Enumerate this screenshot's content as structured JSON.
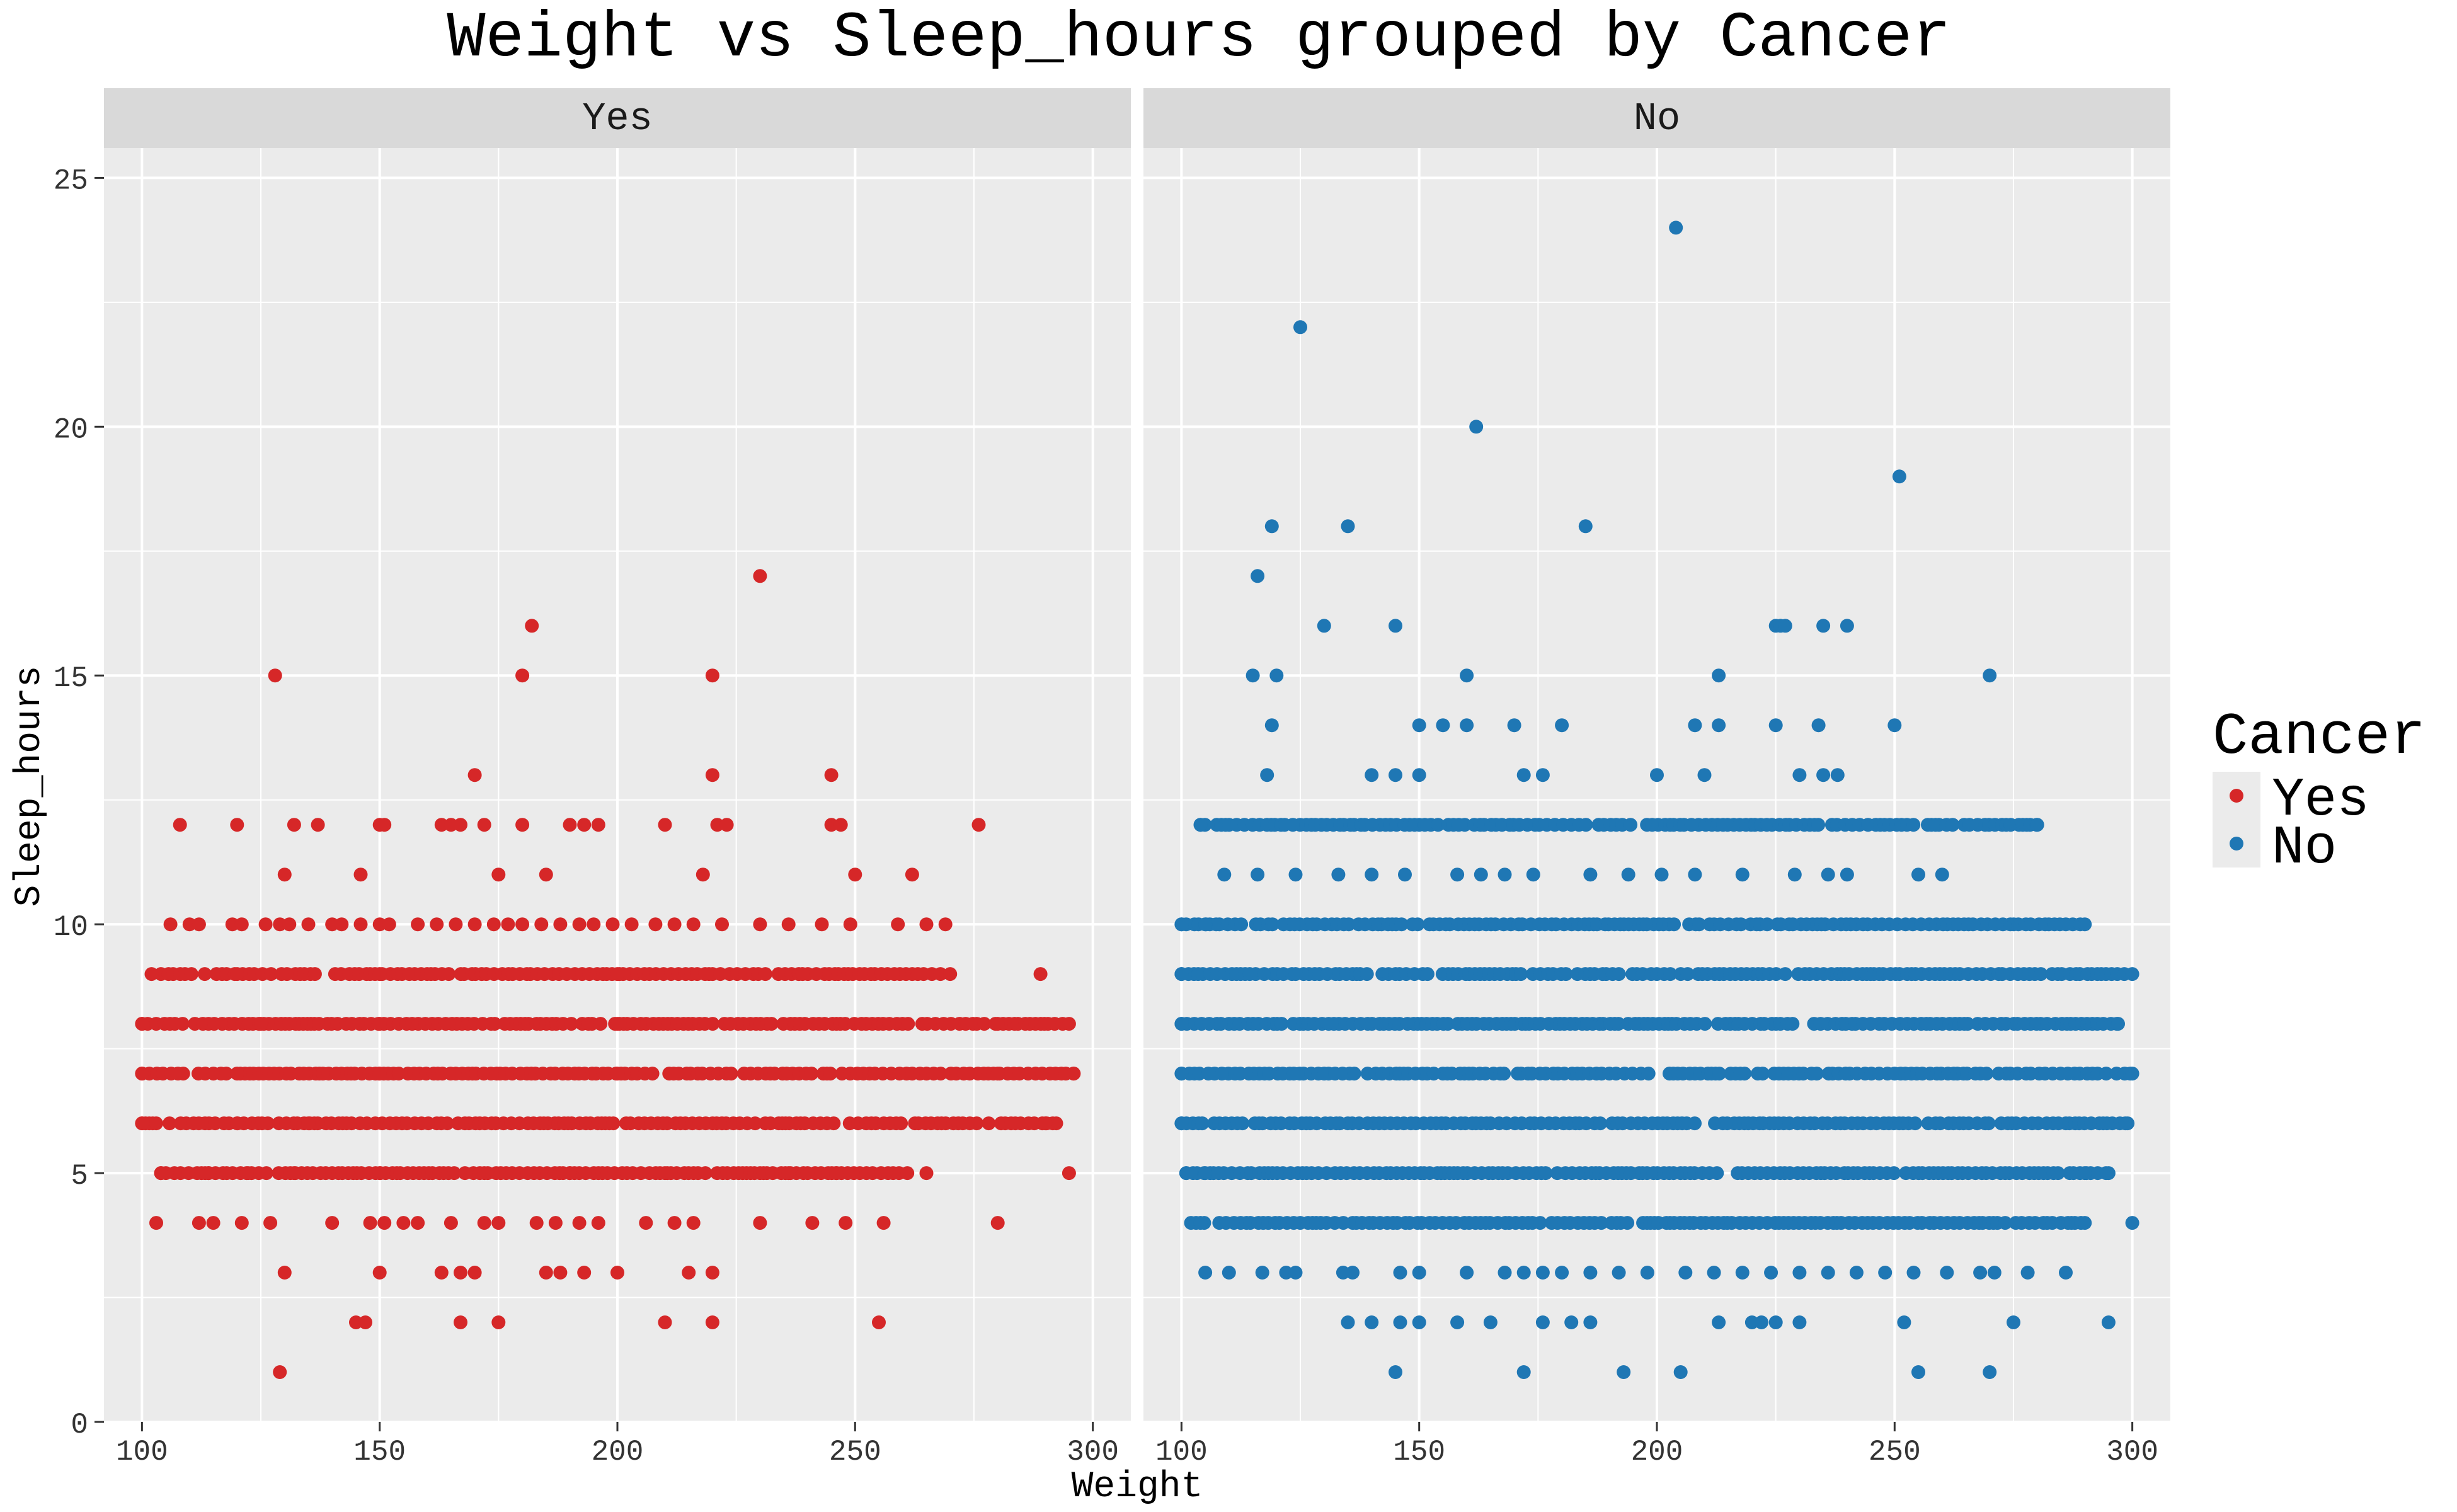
{
  "chart_data": {
    "type": "scatter",
    "title": "Weight vs Sleep_hours grouped by Cancer",
    "xlabel": "Weight",
    "ylabel": "Sleep_hours",
    "xlim": [
      92,
      308
    ],
    "ylim": [
      0,
      25.6
    ],
    "x_ticks": [
      100,
      150,
      200,
      250,
      300
    ],
    "y_ticks": [
      0,
      5,
      10,
      15,
      20,
      25
    ],
    "grid": true,
    "legend": {
      "title": "Cancer",
      "position": "right",
      "entries": [
        {
          "label": "Yes",
          "color": "#d62728"
        },
        {
          "label": "No",
          "color": "#1f77b4"
        }
      ]
    },
    "panels": [
      {
        "label": "Yes",
        "color": "#d62728",
        "points": [
          [
            129,
            1
          ],
          [
            145,
            2
          ],
          [
            147,
            2
          ],
          [
            167,
            2
          ],
          [
            175,
            2
          ],
          [
            210,
            2
          ],
          [
            220,
            2
          ],
          [
            255,
            2
          ],
          [
            130,
            3
          ],
          [
            150,
            3
          ],
          [
            163,
            3
          ],
          [
            167,
            3
          ],
          [
            170,
            3
          ],
          [
            185,
            3
          ],
          [
            188,
            3
          ],
          [
            193,
            3
          ],
          [
            200,
            3
          ],
          [
            215,
            3
          ],
          [
            220,
            3
          ],
          [
            103,
            4
          ],
          [
            112,
            4
          ],
          [
            115,
            4
          ],
          [
            121,
            4
          ],
          [
            127,
            4
          ],
          [
            140,
            4
          ],
          [
            148,
            4
          ],
          [
            151,
            4
          ],
          [
            155,
            4
          ],
          [
            158,
            4
          ],
          [
            165,
            4
          ],
          [
            172,
            4
          ],
          [
            175,
            4
          ],
          [
            183,
            4
          ],
          [
            187,
            4
          ],
          [
            192,
            4
          ],
          [
            196,
            4
          ],
          [
            206,
            4
          ],
          [
            212,
            4
          ],
          [
            216,
            4
          ],
          [
            230,
            4
          ],
          [
            241,
            4
          ],
          [
            248,
            4
          ],
          [
            256,
            4
          ],
          [
            280,
            4
          ],
          [
            104,
            5
          ],
          [
            114,
            5
          ],
          [
            122,
            5
          ],
          [
            132,
            5
          ],
          [
            150,
            5
          ],
          [
            172,
            5
          ],
          [
            190,
            5
          ],
          [
            210,
            5
          ],
          [
            236,
            5
          ],
          [
            246,
            5
          ],
          [
            265,
            5
          ],
          [
            295,
            5
          ],
          [
            100,
            6
          ],
          [
            120,
            6
          ],
          [
            135,
            6
          ],
          [
            290,
            6
          ],
          [
            100,
            7
          ],
          [
            120,
            7
          ],
          [
            150,
            7
          ],
          [
            200,
            7
          ],
          [
            280,
            7
          ],
          [
            296,
            7
          ],
          [
            100,
            8
          ],
          [
            125,
            8
          ],
          [
            150,
            8
          ],
          [
            200,
            8
          ],
          [
            280,
            8
          ],
          [
            295,
            8
          ],
          [
            102,
            9
          ],
          [
            120,
            9
          ],
          [
            150,
            9
          ],
          [
            200,
            9
          ],
          [
            270,
            9
          ],
          [
            289,
            9
          ],
          [
            106,
            10
          ],
          [
            110,
            10
          ],
          [
            112,
            10
          ],
          [
            119,
            10
          ],
          [
            121,
            10
          ],
          [
            126,
            10
          ],
          [
            129,
            10
          ],
          [
            131,
            10
          ],
          [
            135,
            10
          ],
          [
            140,
            10
          ],
          [
            142,
            10
          ],
          [
            146,
            10
          ],
          [
            150,
            10
          ],
          [
            152,
            10
          ],
          [
            158,
            10
          ],
          [
            162,
            10
          ],
          [
            166,
            10
          ],
          [
            170,
            10
          ],
          [
            174,
            10
          ],
          [
            177,
            10
          ],
          [
            180,
            10
          ],
          [
            184,
            10
          ],
          [
            188,
            10
          ],
          [
            192,
            10
          ],
          [
            195,
            10
          ],
          [
            199,
            10
          ],
          [
            203,
            10
          ],
          [
            208,
            10
          ],
          [
            212,
            10
          ],
          [
            216,
            10
          ],
          [
            222,
            10
          ],
          [
            230,
            10
          ],
          [
            236,
            10
          ],
          [
            243,
            10
          ],
          [
            249,
            10
          ],
          [
            259,
            10
          ],
          [
            265,
            10
          ],
          [
            269,
            10
          ],
          [
            130,
            11
          ],
          [
            146,
            11
          ],
          [
            175,
            11
          ],
          [
            185,
            11
          ],
          [
            218,
            11
          ],
          [
            250,
            11
          ],
          [
            262,
            11
          ],
          [
            108,
            12
          ],
          [
            120,
            12
          ],
          [
            132,
            12
          ],
          [
            137,
            12
          ],
          [
            150,
            12
          ],
          [
            151,
            12
          ],
          [
            163,
            12
          ],
          [
            165,
            12
          ],
          [
            167,
            12
          ],
          [
            172,
            12
          ],
          [
            180,
            12
          ],
          [
            190,
            12
          ],
          [
            193,
            12
          ],
          [
            196,
            12
          ],
          [
            210,
            12
          ],
          [
            221,
            12
          ],
          [
            223,
            12
          ],
          [
            245,
            12
          ],
          [
            247,
            12
          ],
          [
            276,
            12
          ],
          [
            170,
            13
          ],
          [
            220,
            13
          ],
          [
            245,
            13
          ],
          [
            128,
            15
          ],
          [
            180,
            15
          ],
          [
            220,
            15
          ],
          [
            182,
            16
          ],
          [
            230,
            17
          ]
        ],
        "dense_rows": [
          {
            "y": 5,
            "from": 104,
            "to": 262
          },
          {
            "y": 6,
            "from": 100,
            "to": 293
          },
          {
            "y": 7,
            "from": 100,
            "to": 296
          },
          {
            "y": 8,
            "from": 100,
            "to": 295
          },
          {
            "y": 9,
            "from": 104,
            "to": 269
          }
        ]
      },
      {
        "label": "No",
        "color": "#1f77b4",
        "points": [
          [
            145,
            1
          ],
          [
            172,
            1
          ],
          [
            193,
            1
          ],
          [
            205,
            1
          ],
          [
            255,
            1
          ],
          [
            270,
            1
          ],
          [
            135,
            2
          ],
          [
            140,
            2
          ],
          [
            146,
            2
          ],
          [
            150,
            2
          ],
          [
            158,
            2
          ],
          [
            165,
            2
          ],
          [
            176,
            2
          ],
          [
            182,
            2
          ],
          [
            186,
            2
          ],
          [
            213,
            2
          ],
          [
            220,
            2
          ],
          [
            222,
            2
          ],
          [
            225,
            2
          ],
          [
            230,
            2
          ],
          [
            252,
            2
          ],
          [
            275,
            2
          ],
          [
            295,
            2
          ],
          [
            105,
            3
          ],
          [
            110,
            3
          ],
          [
            117,
            3
          ],
          [
            122,
            3
          ],
          [
            124,
            3
          ],
          [
            134,
            3
          ],
          [
            136,
            3
          ],
          [
            146,
            3
          ],
          [
            150,
            3
          ],
          [
            160,
            3
          ],
          [
            168,
            3
          ],
          [
            172,
            3
          ],
          [
            176,
            3
          ],
          [
            180,
            3
          ],
          [
            186,
            3
          ],
          [
            192,
            3
          ],
          [
            198,
            3
          ],
          [
            206,
            3
          ],
          [
            212,
            3
          ],
          [
            218,
            3
          ],
          [
            224,
            3
          ],
          [
            230,
            3
          ],
          [
            236,
            3
          ],
          [
            242,
            3
          ],
          [
            248,
            3
          ],
          [
            254,
            3
          ],
          [
            261,
            3
          ],
          [
            268,
            3
          ],
          [
            271,
            3
          ],
          [
            278,
            3
          ],
          [
            286,
            3
          ],
          [
            104,
            4
          ],
          [
            300,
            4
          ],
          [
            290,
            4
          ],
          [
            101,
            5
          ],
          [
            105,
            5
          ],
          [
            290,
            5
          ],
          [
            295,
            5
          ],
          [
            100,
            6
          ],
          [
            299,
            6
          ],
          [
            100,
            7
          ],
          [
            300,
            7
          ],
          [
            100,
            8
          ],
          [
            297,
            8
          ],
          [
            100,
            9
          ],
          [
            300,
            9
          ],
          [
            100,
            10
          ],
          [
            105,
            10
          ],
          [
            290,
            10
          ],
          [
            109,
            11
          ],
          [
            116,
            11
          ],
          [
            124,
            11
          ],
          [
            133,
            11
          ],
          [
            140,
            11
          ],
          [
            147,
            11
          ],
          [
            158,
            11
          ],
          [
            163,
            11
          ],
          [
            168,
            11
          ],
          [
            174,
            11
          ],
          [
            186,
            11
          ],
          [
            194,
            11
          ],
          [
            201,
            11
          ],
          [
            208,
            11
          ],
          [
            218,
            11
          ],
          [
            229,
            11
          ],
          [
            236,
            11
          ],
          [
            240,
            11
          ],
          [
            255,
            11
          ],
          [
            260,
            11
          ],
          [
            104,
            12
          ],
          [
            280,
            12
          ],
          [
            118,
            13
          ],
          [
            140,
            13
          ],
          [
            145,
            13
          ],
          [
            150,
            13
          ],
          [
            172,
            13
          ],
          [
            176,
            13
          ],
          [
            200,
            13
          ],
          [
            210,
            13
          ],
          [
            230,
            13
          ],
          [
            235,
            13
          ],
          [
            238,
            13
          ],
          [
            119,
            14
          ],
          [
            150,
            14
          ],
          [
            155,
            14
          ],
          [
            160,
            14
          ],
          [
            170,
            14
          ],
          [
            180,
            14
          ],
          [
            208,
            14
          ],
          [
            213,
            14
          ],
          [
            225,
            14
          ],
          [
            234,
            14
          ],
          [
            250,
            14
          ],
          [
            115,
            15
          ],
          [
            120,
            15
          ],
          [
            160,
            15
          ],
          [
            213,
            15
          ],
          [
            270,
            15
          ],
          [
            130,
            16
          ],
          [
            145,
            16
          ],
          [
            225,
            16
          ],
          [
            226,
            16
          ],
          [
            227,
            16
          ],
          [
            235,
            16
          ],
          [
            240,
            16
          ],
          [
            116,
            17
          ],
          [
            119,
            18
          ],
          [
            135,
            18
          ],
          [
            185,
            18
          ],
          [
            251,
            19
          ],
          [
            162,
            20
          ],
          [
            125,
            22
          ],
          [
            204,
            24
          ]
        ],
        "dense_rows": [
          {
            "y": 4,
            "from": 102,
            "to": 290
          },
          {
            "y": 5,
            "from": 101,
            "to": 295
          },
          {
            "y": 6,
            "from": 100,
            "to": 299
          },
          {
            "y": 7,
            "from": 100,
            "to": 300
          },
          {
            "y": 8,
            "from": 100,
            "to": 297
          },
          {
            "y": 9,
            "from": 100,
            "to": 300
          },
          {
            "y": 10,
            "from": 100,
            "to": 290
          },
          {
            "y": 12,
            "from": 104,
            "to": 280
          }
        ]
      }
    ]
  }
}
